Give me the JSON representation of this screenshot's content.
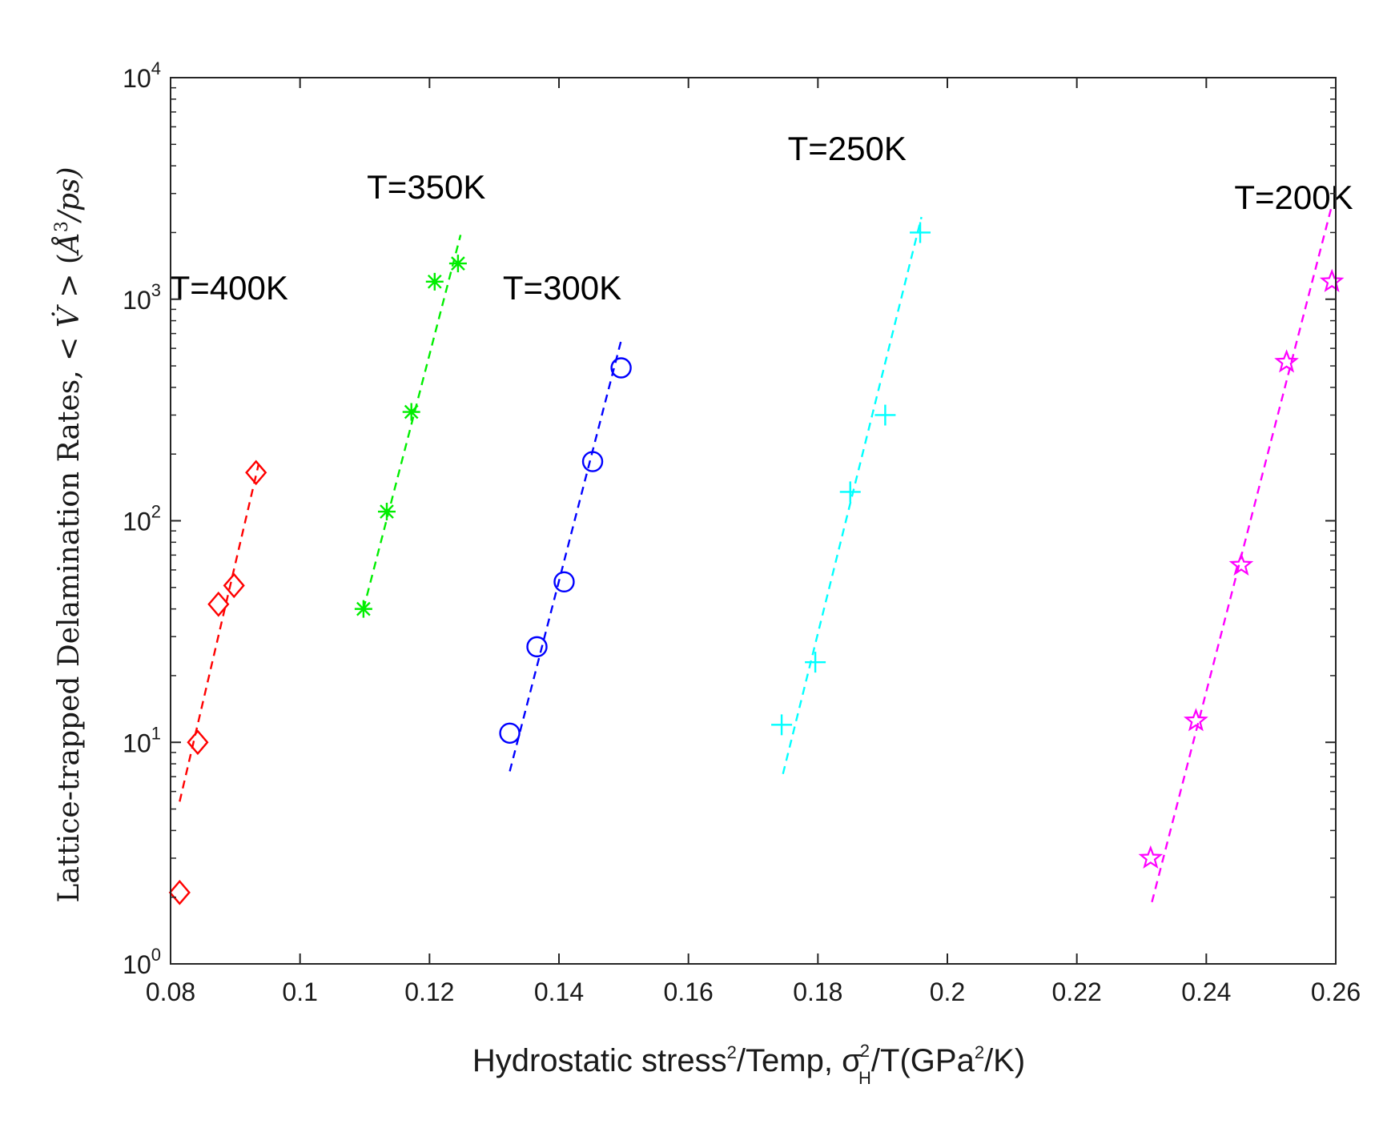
{
  "chart_data": {
    "type": "scatter",
    "title": "",
    "xlabel": "Hydrostatic stress²/Temp, σ²H/T(GPa²/K)",
    "xlabel_parts": {
      "pre": "Hydrostatic stress",
      "sup1": "2",
      "mid": "/Temp, σ",
      "sup2": "2",
      "sub2": "H",
      "post": "/T(GPa",
      "sup3": "2",
      "tail": "/K)"
    },
    "ylabel": "Lattice-trapped Delamination Rates, < V̇ > (Å³/ps)",
    "ylabel_parts": {
      "pre": "Lattice-trapped Delamination Rates, < ",
      "v": "V̇",
      "mid": " > (",
      "a": "Å",
      "sup": "3",
      "post": "/ps)"
    },
    "xlim": [
      0.08,
      0.26
    ],
    "ylim": [
      1,
      10000
    ],
    "yscale": "log",
    "grid": false,
    "xticks": [
      0.08,
      0.1,
      0.12,
      0.14,
      0.16,
      0.18,
      0.2,
      0.22,
      0.24,
      0.26
    ],
    "xtick_labels": [
      "0.08",
      "0.1",
      "0.12",
      "0.14",
      "0.16",
      "0.18",
      "0.2",
      "0.22",
      "0.24",
      "0.26"
    ],
    "yticks": [
      {
        "value": 1,
        "base": "10",
        "exp": "0"
      },
      {
        "value": 10,
        "base": "10",
        "exp": "1"
      },
      {
        "value": 100,
        "base": "10",
        "exp": "2"
      },
      {
        "value": 1000,
        "base": "10",
        "exp": "3"
      },
      {
        "value": 10000,
        "base": "10",
        "exp": "4"
      }
    ],
    "series": [
      {
        "name": "T=400K",
        "color": "#ff0000",
        "marker": "diamond",
        "x": [
          0.0814,
          0.0842,
          0.0874,
          0.0898,
          0.0932
        ],
        "y": [
          2.1,
          10,
          42,
          51,
          165
        ],
        "fit": {
          "x": [
            0.0814,
            0.0936
          ],
          "y": [
            5.4,
            180
          ]
        },
        "label": {
          "text": "T=400K",
          "x": 0.089,
          "y": 1000
        }
      },
      {
        "name": "T=350K",
        "color": "#00ee00",
        "marker": "asterisk",
        "x": [
          0.1098,
          0.1134,
          0.1172,
          0.1208,
          0.1244
        ],
        "y": [
          40,
          110,
          310,
          1200,
          1450
        ],
        "fit": {
          "x": [
            0.1098,
            0.1248
          ],
          "y": [
            40,
            1950
          ]
        },
        "label": {
          "text": "T=350K",
          "x": 0.1195,
          "y": 2850
        }
      },
      {
        "name": "T=300K",
        "color": "#0000ff",
        "marker": "circle",
        "x": [
          0.1324,
          0.1366,
          0.1408,
          0.1452,
          0.1496
        ],
        "y": [
          11,
          27,
          53,
          185,
          490
        ],
        "fit": {
          "x": [
            0.1324,
            0.1496
          ],
          "y": [
            7.4,
            650
          ]
        },
        "label": {
          "text": "T=300K",
          "x": 0.1405,
          "y": 1000
        }
      },
      {
        "name": "T=250K",
        "color": "#00ffff",
        "marker": "plus",
        "x": [
          0.1744,
          0.1796,
          0.185,
          0.1904,
          0.1958
        ],
        "y": [
          12,
          23,
          135,
          300,
          2000
        ],
        "fit": {
          "x": [
            0.1746,
            0.196
          ],
          "y": [
            7.2,
            2350
          ]
        },
        "label": {
          "text": "T=250K",
          "x": 0.1845,
          "y": 4250
        }
      },
      {
        "name": "T=200K",
        "color": "#ff00ff",
        "marker": "pentagram",
        "x": [
          0.2314,
          0.2384,
          0.2454,
          0.2524,
          0.2594
        ],
        "y": [
          3.0,
          12.5,
          63,
          520,
          1200
        ],
        "fit": {
          "x": [
            0.2316,
            0.2594
          ],
          "y": [
            1.9,
            2650
          ]
        },
        "label": {
          "text": "T=200K",
          "x": 0.2535,
          "y": 2550
        }
      }
    ]
  }
}
